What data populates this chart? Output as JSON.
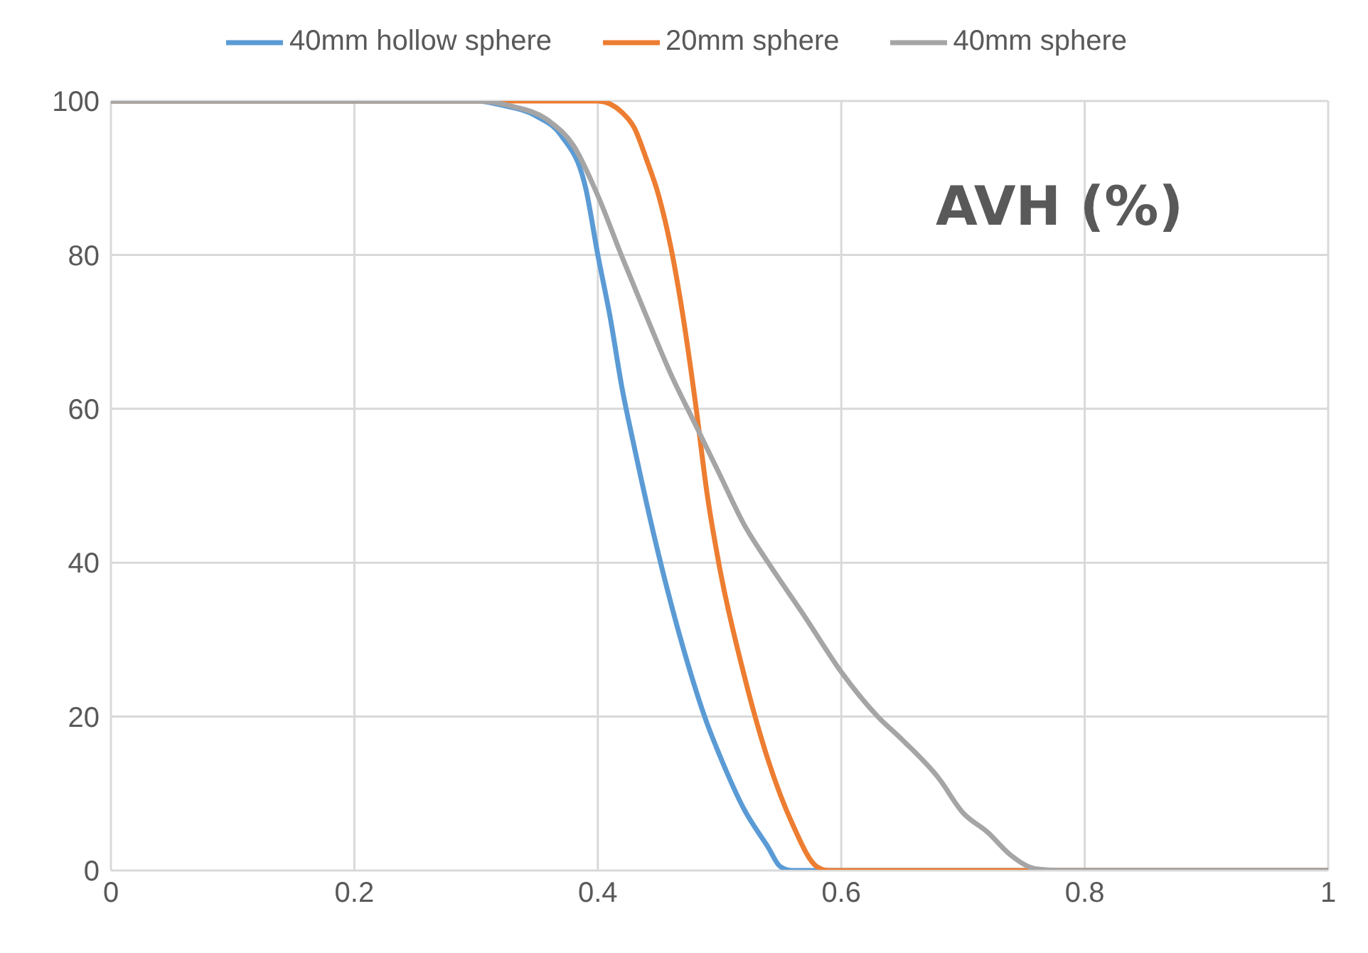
{
  "chart_data": {
    "type": "line",
    "annotations": [
      "AVH (%)"
    ],
    "xlim": [
      0,
      1
    ],
    "xticks": [
      0,
      0.2,
      0.4,
      0.6,
      0.8,
      1
    ],
    "ylim": [
      0,
      100
    ],
    "yticks": [
      0,
      20,
      40,
      60,
      80,
      100
    ],
    "grid": true,
    "legend": "top",
    "marker": "none",
    "line_style": "solid",
    "series": [
      {
        "name": "40mm hollow sphere",
        "color": "#5b9bd5",
        "x": [
          0,
          0.3,
          0.32,
          0.35,
          0.37,
          0.39,
          0.4,
          0.41,
          0.42,
          0.43,
          0.45,
          0.47,
          0.49,
          0.5,
          0.52,
          0.54,
          0.55,
          0.56,
          1
        ],
        "values": [
          100,
          100,
          99.5,
          98,
          95.5,
          88.7,
          80,
          72,
          62.6,
          55,
          41,
          29,
          19,
          15,
          8,
          3,
          0.5,
          0,
          0
        ]
      },
      {
        "name": "20mm sphere",
        "color": "#ed7d31",
        "x": [
          0,
          0.4,
          0.42,
          0.43,
          0.44,
          0.45,
          0.46,
          0.47,
          0.48,
          0.49,
          0.5,
          0.52,
          0.54,
          0.56,
          0.58,
          0.59,
          1
        ],
        "values": [
          100,
          100,
          98.5,
          96.5,
          92.4,
          87.7,
          81,
          72,
          61,
          48.7,
          39.4,
          25.5,
          14.3,
          6,
          0.5,
          0,
          0
        ]
      },
      {
        "name": "40mm sphere",
        "color": "#a5a5a5",
        "x": [
          0,
          0.3,
          0.33,
          0.36,
          0.38,
          0.4,
          0.42,
          0.44,
          0.46,
          0.48,
          0.5,
          0.52,
          0.54,
          0.57,
          0.6,
          0.63,
          0.65,
          0.68,
          0.7,
          0.72,
          0.74,
          0.76,
          0.78,
          1
        ],
        "values": [
          100,
          100,
          99.3,
          97.4,
          94.2,
          87.7,
          79.7,
          72,
          64.5,
          58,
          51.5,
          45,
          40,
          33,
          25.8,
          20,
          17,
          12,
          7.5,
          5,
          1.9,
          0.2,
          0,
          0
        ]
      }
    ]
  }
}
